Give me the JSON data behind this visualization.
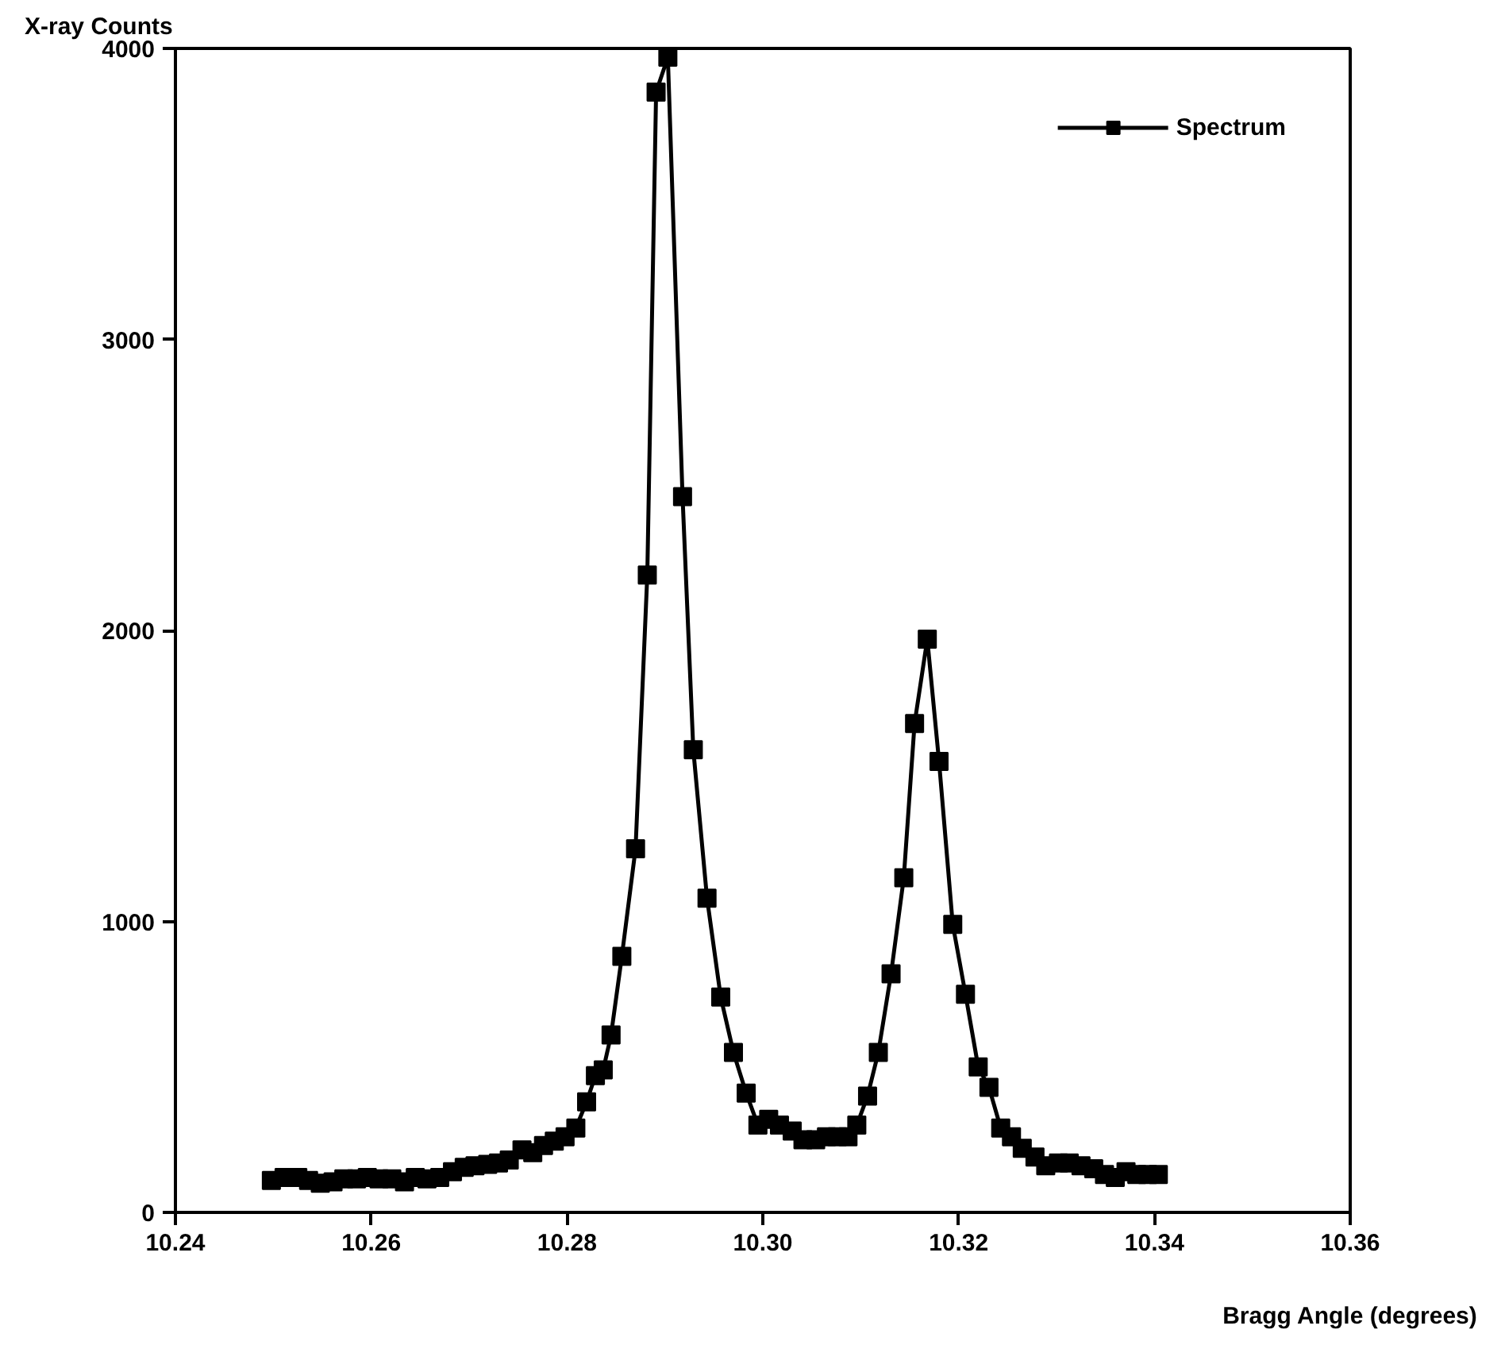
{
  "chart_data": {
    "type": "line",
    "xlabel": "Bragg Angle (degrees)",
    "ylabel": "X-ray Counts",
    "xlim": [
      10.24,
      10.36
    ],
    "xticks": [
      {
        "value": 10.24,
        "label": "10.24"
      },
      {
        "value": 10.26,
        "label": "10.26"
      },
      {
        "value": 10.28,
        "label": "10.28"
      },
      {
        "value": 10.3,
        "label": "10.30"
      },
      {
        "value": 10.32,
        "label": "10.32"
      },
      {
        "value": 10.34,
        "label": "10.34"
      },
      {
        "value": 10.36,
        "label": "10.36"
      }
    ],
    "ylim": [
      0,
      4000
    ],
    "yticks": [
      0,
      1000,
      2000,
      3000,
      4000
    ],
    "grid": false,
    "legend": "top right",
    "marker": "square",
    "line_style": "solid",
    "x": [
      10.2498,
      10.2511,
      10.2525,
      10.2536,
      10.2548,
      10.2561,
      10.2572,
      10.2585,
      10.2596,
      10.2608,
      10.2621,
      10.2634,
      10.2645,
      10.2657,
      10.267,
      10.2683,
      10.2695,
      10.2706,
      10.2719,
      10.273,
      10.2741,
      10.2754,
      10.2765,
      10.2776,
      10.2787,
      10.2798,
      10.2809,
      10.282,
      10.2829,
      10.2837,
      10.2845,
      10.2856,
      10.287,
      10.2882,
      10.2891,
      10.2903,
      10.2918,
      10.2929,
      10.2943,
      10.2957,
      10.297,
      10.2983,
      10.2995,
      10.3006,
      10.3017,
      10.303,
      10.3041,
      10.3054,
      10.3065,
      10.3076,
      10.3087,
      10.3096,
      10.3107,
      10.3118,
      10.3131,
      10.3144,
      10.3155,
      10.3168,
      10.318,
      10.3194,
      10.3207,
      10.322,
      10.3231,
      10.3243,
      10.3254,
      10.3265,
      10.3278,
      10.3289,
      10.3302,
      10.3313,
      10.3325,
      10.3338,
      10.3349,
      10.336,
      10.3371,
      10.3382,
      10.3393,
      10.3404
    ],
    "series": [
      {
        "name": "Spectrum",
        "color": "#000000",
        "values": [
          110,
          120,
          120,
          110,
          100,
          105,
          115,
          115,
          120,
          115,
          115,
          105,
          120,
          115,
          120,
          140,
          155,
          160,
          165,
          170,
          180,
          215,
          205,
          230,
          245,
          260,
          290,
          380,
          470,
          490,
          610,
          880,
          1250,
          2190,
          3850,
          3970,
          2460,
          1590,
          1080,
          740,
          550,
          410,
          300,
          320,
          300,
          280,
          250,
          250,
          260,
          260,
          260,
          300,
          400,
          550,
          820,
          1150,
          1680,
          1970,
          1550,
          990,
          750,
          500,
          430,
          290,
          260,
          220,
          190,
          160,
          170,
          170,
          160,
          150,
          130,
          120,
          140,
          130,
          130,
          130
        ]
      }
    ]
  }
}
